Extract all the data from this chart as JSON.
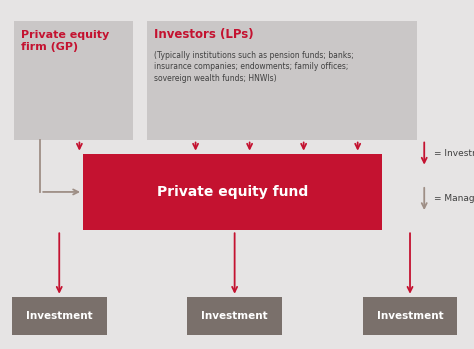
{
  "bg_color": "#e6e4e4",
  "red_color": "#c41230",
  "dark_gray_box": "#7a706b",
  "light_gray_box": "#cac7c7",
  "white": "#ffffff",
  "arrow_red": "#c41230",
  "arrow_gray": "#9e8e85",
  "title_gp": "Private equity\nfirm (GP)",
  "title_investors": "Investors (LPs)",
  "subtitle_investors": "(Typically institutions such as pension funds; banks;\ninsurance companies; endowments; family offices;\nsovereign wealth funds; HNWIs)",
  "center_label": "Private equity fund",
  "investment_label": "Investment",
  "legend_investment": "= Investment",
  "legend_management": "= Management",
  "figw": 4.74,
  "figh": 3.49,
  "dpi": 100
}
